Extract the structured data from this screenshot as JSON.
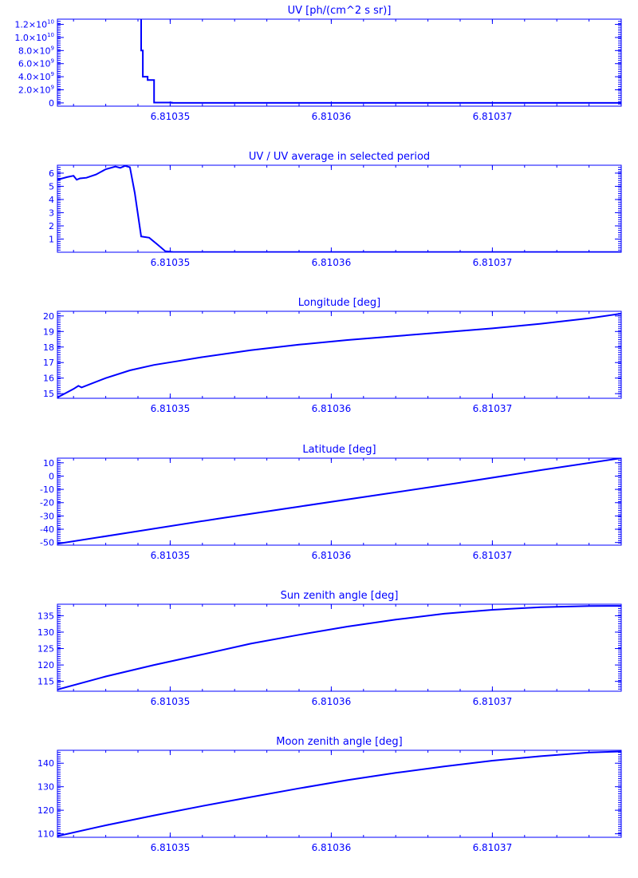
{
  "colors": {
    "line": "#0000ff",
    "background": "#ffffff"
  },
  "chart_data": [
    {
      "type": "line",
      "title": "UV [ph/(cm^2 s sr)]",
      "xlim": [
        6.810343,
        6.810378
      ],
      "ylim": [
        -500000000.0,
        12800000000.0
      ],
      "y_scale": "linear",
      "x_ticks": [
        6.81035,
        6.81036,
        6.81037
      ],
      "x_tick_labels": [
        "6.81035",
        "6.81036",
        "6.81037"
      ],
      "y_ticks": [
        0,
        2000000000.0,
        4000000000.0,
        6000000000.0,
        8000000000.0,
        10000000000.0,
        12000000000.0
      ],
      "y_tick_labels": [
        {
          "mant": "0",
          "exp": ""
        },
        {
          "mant": "2.0×10",
          "exp": "9"
        },
        {
          "mant": "4.0×10",
          "exp": "9"
        },
        {
          "mant": "6.0×10",
          "exp": "9"
        },
        {
          "mant": "8.0×10",
          "exp": "9"
        },
        {
          "mant": "1.0×10",
          "exp": "10"
        },
        {
          "mant": "1.2×10",
          "exp": "10"
        }
      ],
      "step": true,
      "x": [
        6.8103476,
        6.8103482,
        6.8103482,
        6.8103483,
        6.8103483,
        6.8103486,
        6.8103486,
        6.810349,
        6.810349,
        6.8103501,
        6.8103501,
        6.810378
      ],
      "y": [
        13000000000.0,
        13000000000.0,
        8000000000.0,
        8000000000.0,
        4000000000.0,
        4000000000.0,
        3500000000.0,
        3500000000.0,
        50000000.0,
        50000000.0,
        0,
        0
      ]
    },
    {
      "type": "line",
      "title": "UV / UV average in selected period",
      "xlim": [
        6.810343,
        6.810378
      ],
      "ylim": [
        0,
        6.6
      ],
      "y_scale": "linear",
      "x_ticks": [
        6.81035,
        6.81036,
        6.81037
      ],
      "x_tick_labels": [
        "6.81035",
        "6.81036",
        "6.81037"
      ],
      "y_ticks": [
        1,
        2,
        3,
        4,
        5,
        6
      ],
      "y_tick_labels": [
        "1",
        "2",
        "3",
        "4",
        "5",
        "6"
      ],
      "x": [
        6.810343,
        6.8103436,
        6.810344,
        6.8103442,
        6.8103444,
        6.8103448,
        6.8103454,
        6.810346,
        6.8103466,
        6.8103469,
        6.8103472,
        6.8103475,
        6.8103478,
        6.8103482,
        6.8103487,
        6.8103492,
        6.8103497,
        6.8103502,
        6.810378
      ],
      "y": [
        5.5,
        5.7,
        5.8,
        5.5,
        5.6,
        5.65,
        5.9,
        6.3,
        6.5,
        6.4,
        6.55,
        6.45,
        4.5,
        1.2,
        1.1,
        0.6,
        0.08,
        0.02,
        0.02
      ]
    },
    {
      "type": "line",
      "title": "Longitude [deg]",
      "xlim": [
        6.810343,
        6.810378
      ],
      "ylim": [
        14.7,
        20.3
      ],
      "y_scale": "linear",
      "x_ticks": [
        6.81035,
        6.81036,
        6.81037
      ],
      "x_tick_labels": [
        "6.81035",
        "6.81036",
        "6.81037"
      ],
      "y_ticks": [
        15,
        16,
        17,
        18,
        19,
        20
      ],
      "y_tick_labels": [
        "15",
        "16",
        "17",
        "18",
        "19",
        "20"
      ],
      "x": [
        6.810343,
        6.810344,
        6.8103443,
        6.8103445,
        6.810346,
        6.8103475,
        6.810349,
        6.8103505,
        6.810352,
        6.810355,
        6.810358,
        6.810361,
        6.810364,
        6.810367,
        6.81037,
        6.810373,
        6.810376,
        6.810378
      ],
      "y": [
        14.75,
        15.3,
        15.5,
        15.4,
        16.0,
        16.5,
        16.85,
        17.1,
        17.35,
        17.8,
        18.15,
        18.45,
        18.7,
        18.95,
        19.2,
        19.5,
        19.85,
        20.15
      ]
    },
    {
      "type": "line",
      "title": "Latitude [deg]",
      "xlim": [
        6.810343,
        6.810378
      ],
      "ylim": [
        -52,
        13.5
      ],
      "y_scale": "linear",
      "x_ticks": [
        6.81035,
        6.81036,
        6.81037
      ],
      "x_tick_labels": [
        "6.81035",
        "6.81036",
        "6.81037"
      ],
      "y_ticks": [
        -50,
        -40,
        -30,
        -20,
        -10,
        0,
        10
      ],
      "y_tick_labels": [
        "-50",
        "-40",
        "-30",
        "-20",
        "-10",
        "0",
        "10"
      ],
      "x": [
        6.810343,
        6.810348,
        6.810353,
        6.810358,
        6.810363,
        6.810368,
        6.810373,
        6.810378
      ],
      "y": [
        -51,
        -41.5,
        -32,
        -23,
        -14,
        -5,
        4.5,
        13.5
      ]
    },
    {
      "type": "line",
      "title": "Sun zenith angle [deg]",
      "xlim": [
        6.810343,
        6.810378
      ],
      "ylim": [
        112,
        138.5
      ],
      "y_scale": "linear",
      "x_ticks": [
        6.81035,
        6.81036,
        6.81037
      ],
      "x_tick_labels": [
        "6.81035",
        "6.81036",
        "6.81037"
      ],
      "y_ticks": [
        115,
        120,
        125,
        130,
        135
      ],
      "y_tick_labels": [
        "115",
        "120",
        "125",
        "130",
        "135"
      ],
      "x": [
        6.810343,
        6.810346,
        6.810349,
        6.810352,
        6.810355,
        6.810358,
        6.810361,
        6.810364,
        6.810367,
        6.81037,
        6.810373,
        6.810376,
        6.810378
      ],
      "y": [
        112.5,
        116.5,
        120.0,
        123.2,
        126.5,
        129.2,
        131.7,
        133.8,
        135.6,
        136.8,
        137.6,
        137.95,
        138.0
      ]
    },
    {
      "type": "line",
      "title": "Moon zenith angle [deg]",
      "xlim": [
        6.810343,
        6.810378
      ],
      "ylim": [
        108.5,
        145.5
      ],
      "y_scale": "linear",
      "x_ticks": [
        6.81035,
        6.81036,
        6.81037
      ],
      "x_tick_labels": [
        "6.81035",
        "6.81036",
        "6.81037"
      ],
      "y_ticks": [
        110,
        120,
        130,
        140
      ],
      "y_tick_labels": [
        "110",
        "120",
        "130",
        "140"
      ],
      "x": [
        6.810343,
        6.810346,
        6.810349,
        6.810352,
        6.810355,
        6.810358,
        6.810361,
        6.810364,
        6.810367,
        6.81037,
        6.810373,
        6.810376,
        6.810378
      ],
      "y": [
        109.0,
        113.6,
        117.8,
        121.8,
        125.6,
        129.3,
        132.8,
        135.9,
        138.6,
        141.1,
        143.0,
        144.6,
        145.0
      ]
    }
  ]
}
